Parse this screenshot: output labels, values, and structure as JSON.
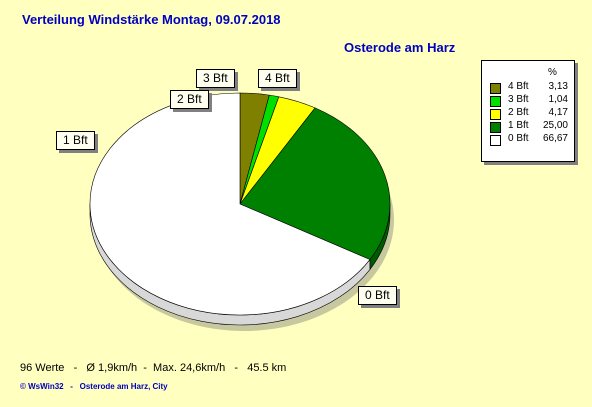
{
  "title": "Verteilung Windstärke  Montag, 09.07.2018",
  "subtitle": "Osterode am Harz",
  "stats": "96 Werte   -   Ø 1,9km/h  -  Max. 24,6km/h   -   45.5 km",
  "footer": "© WsWin32   -   Osterode am Harz, City",
  "legend": {
    "header": "%"
  },
  "chart_data": {
    "type": "pie",
    "title": "Verteilung Windstärke  Montag, 09.07.2018",
    "legend_position": "top-right",
    "slices": [
      {
        "label": "4 Bft",
        "value": 3.13,
        "color": "#808000"
      },
      {
        "label": "3 Bft",
        "value": 1.04,
        "color": "#00e000"
      },
      {
        "label": "2 Bft",
        "value": 4.17,
        "color": "#ffff00"
      },
      {
        "label": "1 Bft",
        "value": 25.0,
        "color": "#008000"
      },
      {
        "label": "0 Bft",
        "value": 66.67,
        "color": "#ffffff"
      }
    ],
    "legend_values": [
      "3,13",
      "1,04",
      "4,17",
      "25,00",
      "66,67"
    ]
  }
}
